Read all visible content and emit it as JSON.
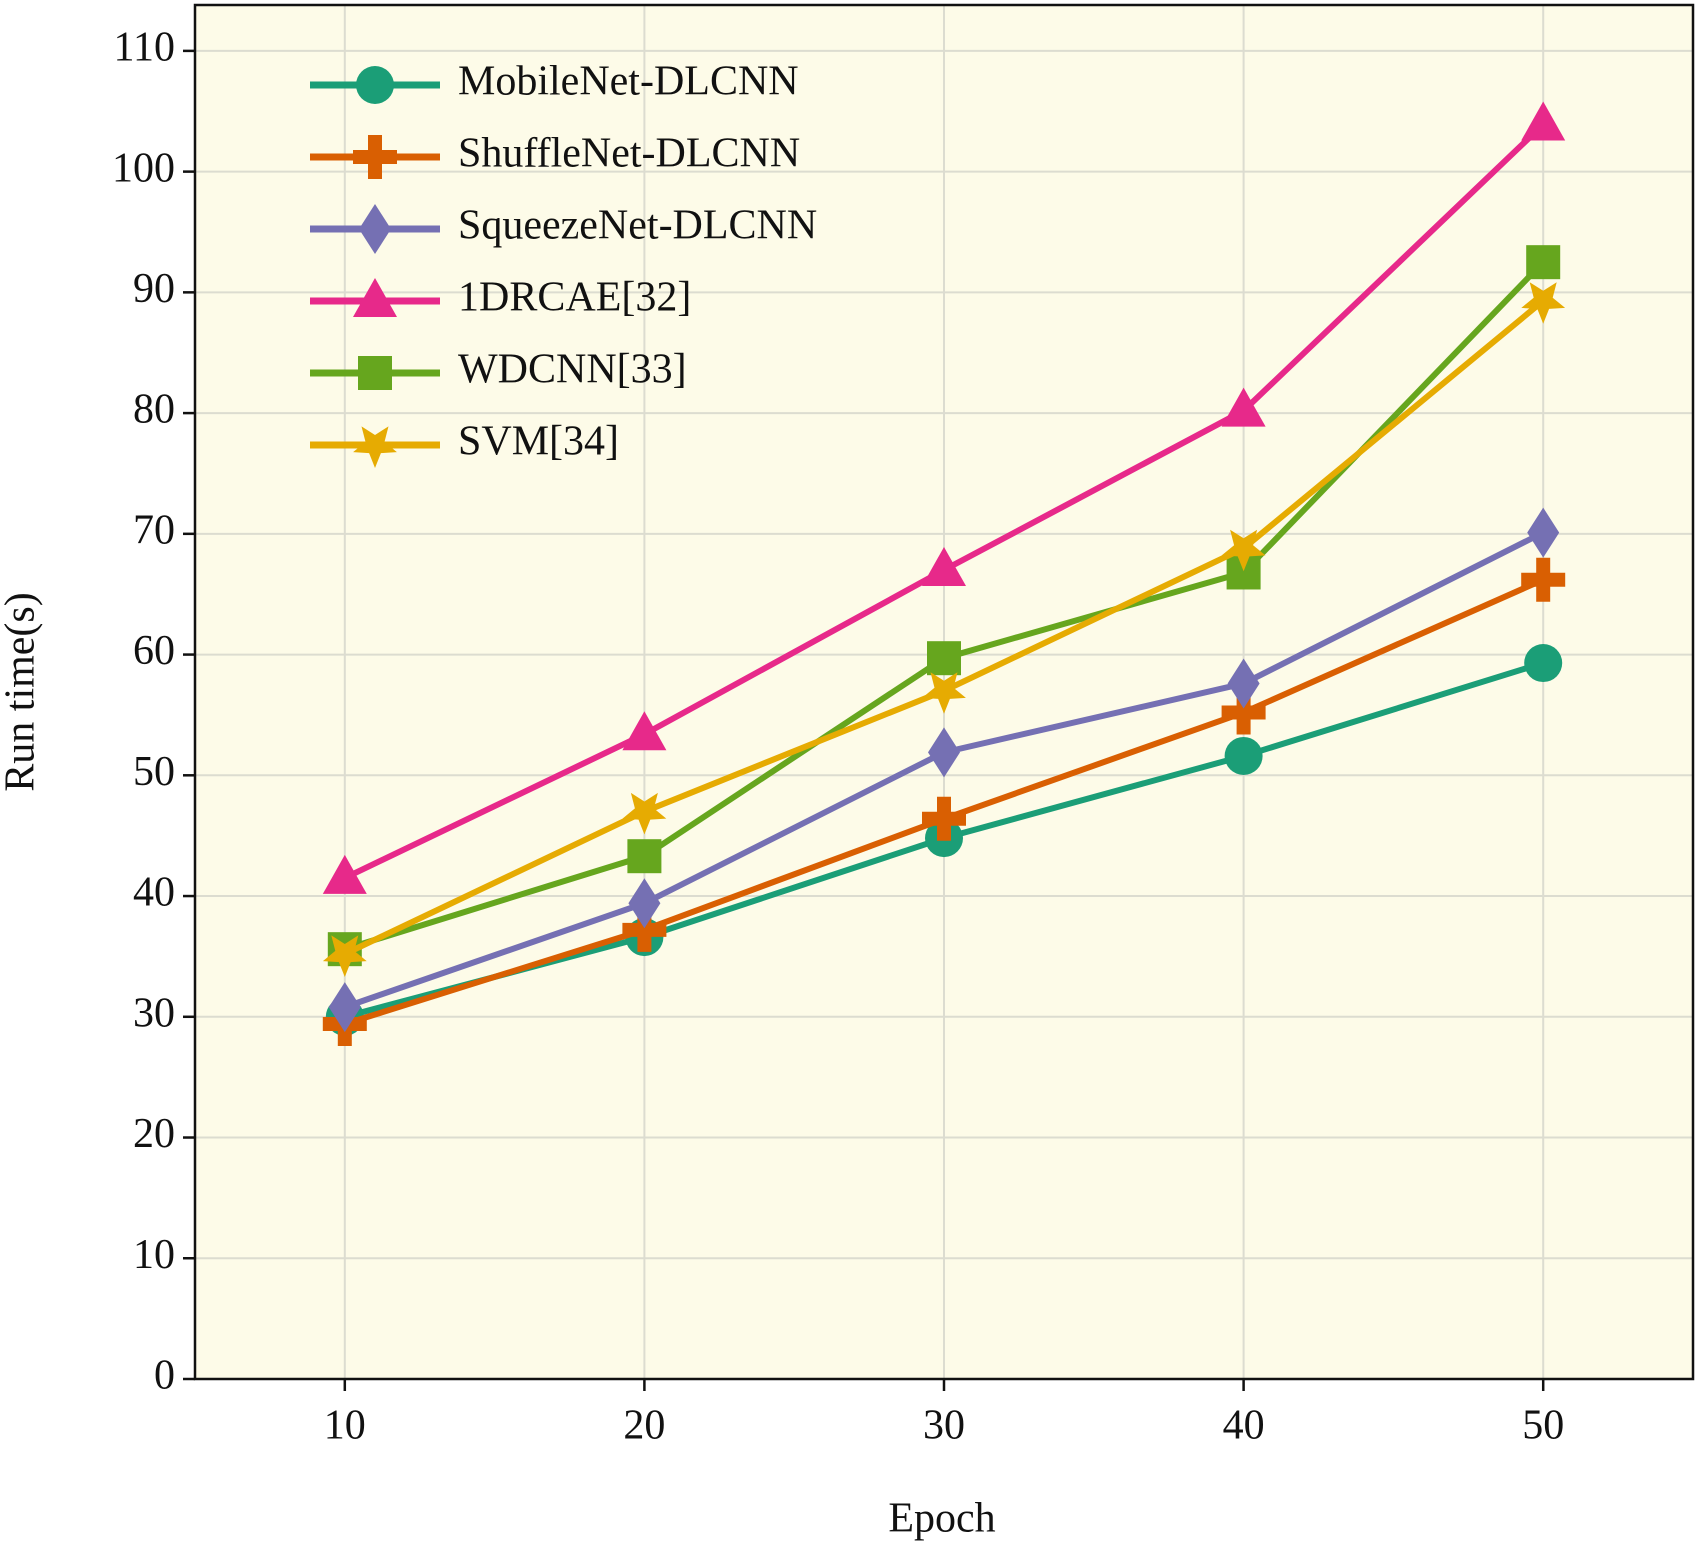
{
  "chart_data": {
    "type": "line",
    "x_label": "Epoch",
    "y_label": "Run time(s)",
    "x": [
      10,
      20,
      30,
      40,
      50
    ],
    "xlim": [
      5,
      55
    ],
    "xticks": [
      10,
      20,
      30,
      40,
      50
    ],
    "ylim": [
      0,
      113.8
    ],
    "yticks": [
      0,
      10,
      20,
      30,
      40,
      50,
      60,
      70,
      80,
      90,
      100,
      110
    ],
    "grid": true,
    "legend": "upper left",
    "background": "#fdfbe8",
    "series": [
      {
        "name": "MobileNet-DLCNN",
        "color": "#1b9e77",
        "marker": "circle",
        "values": [
          30.0,
          36.6,
          44.8,
          51.6,
          59.3
        ]
      },
      {
        "name": "ShuffleNet-DLCNN",
        "color": "#d95f02",
        "marker": "plus",
        "values": [
          29.4,
          37.2,
          46.4,
          55.2,
          66.2
        ]
      },
      {
        "name": "SqueezeNet-DLCNN",
        "color": "#7570b3",
        "marker": "diamond",
        "values": [
          30.8,
          39.4,
          51.9,
          57.6,
          70.1
        ]
      },
      {
        "name": "1DRCAE[32]",
        "color": "#e7298a",
        "marker": "triangle",
        "values": [
          41.5,
          53.4,
          67.0,
          80.2,
          103.9
        ]
      },
      {
        "name": "WDCNN[33]",
        "color": "#66a61e",
        "marker": "square",
        "values": [
          35.6,
          43.3,
          59.7,
          66.8,
          92.5
        ]
      },
      {
        "name": "SVM[34]",
        "color": "#e6ab02",
        "marker": "star",
        "values": [
          35.2,
          47.0,
          57.0,
          68.8,
          89.3
        ]
      }
    ]
  }
}
